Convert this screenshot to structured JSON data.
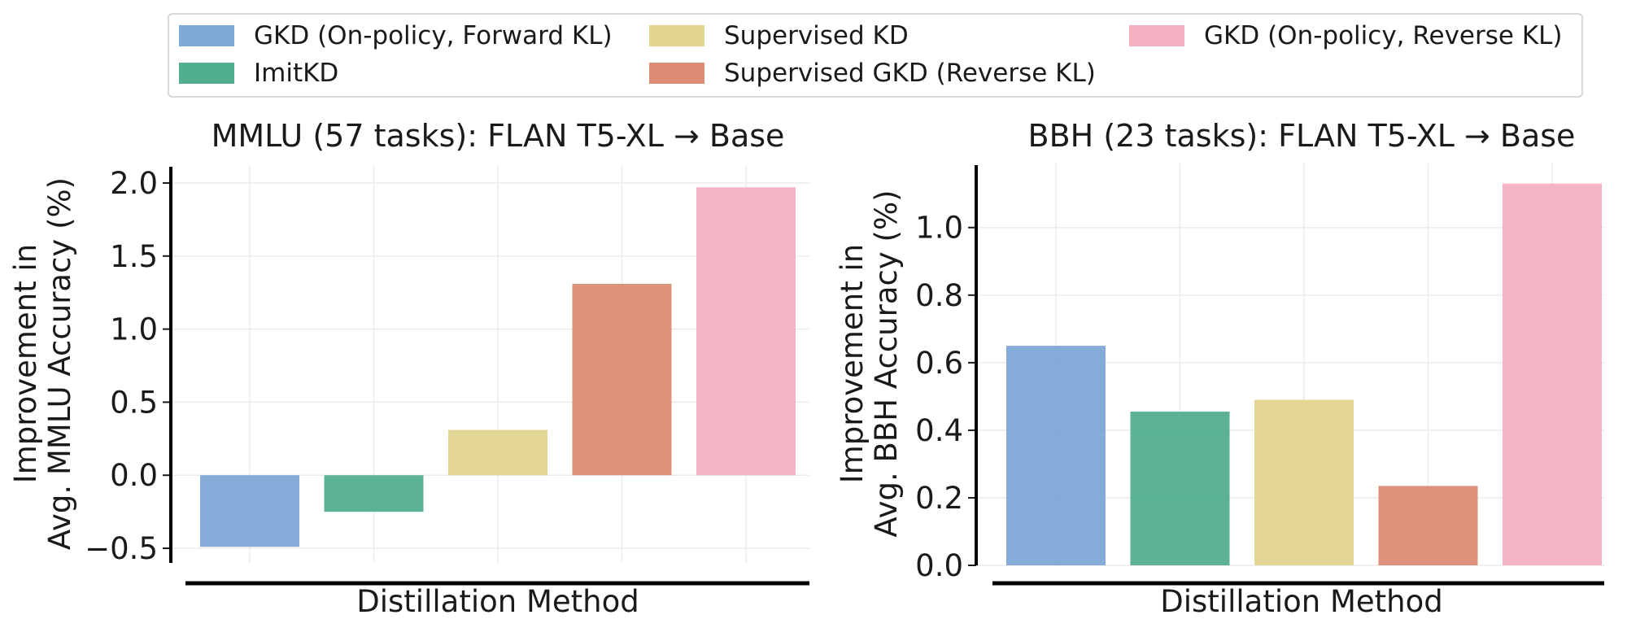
{
  "legend": {
    "items": [
      {
        "label": "GKD (On-policy, Forward KL)",
        "color": "#7EA6D7"
      },
      {
        "label": "ImitKD",
        "color": "#52AE90"
      },
      {
        "label": "Supervised KD",
        "color": "#E1D48F"
      },
      {
        "label": "Supervised GKD (Reverse KL)",
        "color": "#DC8B74"
      },
      {
        "label": "GKD (On-policy, Reverse KL)",
        "color": "#F4B0C0"
      }
    ]
  },
  "chart_data": [
    {
      "type": "bar",
      "title": "MMLU (57 tasks): FLAN T5-XL → Base",
      "xlabel": "Distillation Method",
      "ylabel": [
        "Improvement in",
        "Avg. MMLU Accuracy (%)"
      ],
      "categories": [
        "GKD (On-policy, Forward KL)",
        "ImitKD",
        "Supervised KD",
        "Supervised GKD (Reverse KL)",
        "GKD (On-policy, Reverse KL)"
      ],
      "values": [
        -0.49,
        -0.25,
        0.31,
        1.31,
        1.97
      ],
      "ylim": [
        -0.6,
        2.1
      ],
      "yticks": [
        -0.5,
        0.0,
        0.5,
        1.0,
        1.5,
        2.0
      ],
      "ytick_labels": [
        "−0.5",
        "0.0",
        "0.5",
        "1.0",
        "1.5",
        "2.0"
      ],
      "grid": true
    },
    {
      "type": "bar",
      "title": "BBH (23 tasks): FLAN T5-XL → Base",
      "xlabel": "Distillation Method",
      "ylabel": [
        "Improvement in",
        "Avg. BBH Accuracy (%)"
      ],
      "categories": [
        "GKD (On-policy, Forward KL)",
        "ImitKD",
        "Supervised KD",
        "Supervised GKD (Reverse KL)",
        "GKD (On-policy, Reverse KL)"
      ],
      "values": [
        0.65,
        0.455,
        0.49,
        0.235,
        1.13
      ],
      "ylim": [
        0.0,
        1.18
      ],
      "yticks": [
        0.0,
        0.2,
        0.4,
        0.6,
        0.8,
        1.0
      ],
      "ytick_labels": [
        "0.0",
        "0.2",
        "0.4",
        "0.6",
        "0.8",
        "1.0"
      ],
      "grid": true
    }
  ]
}
